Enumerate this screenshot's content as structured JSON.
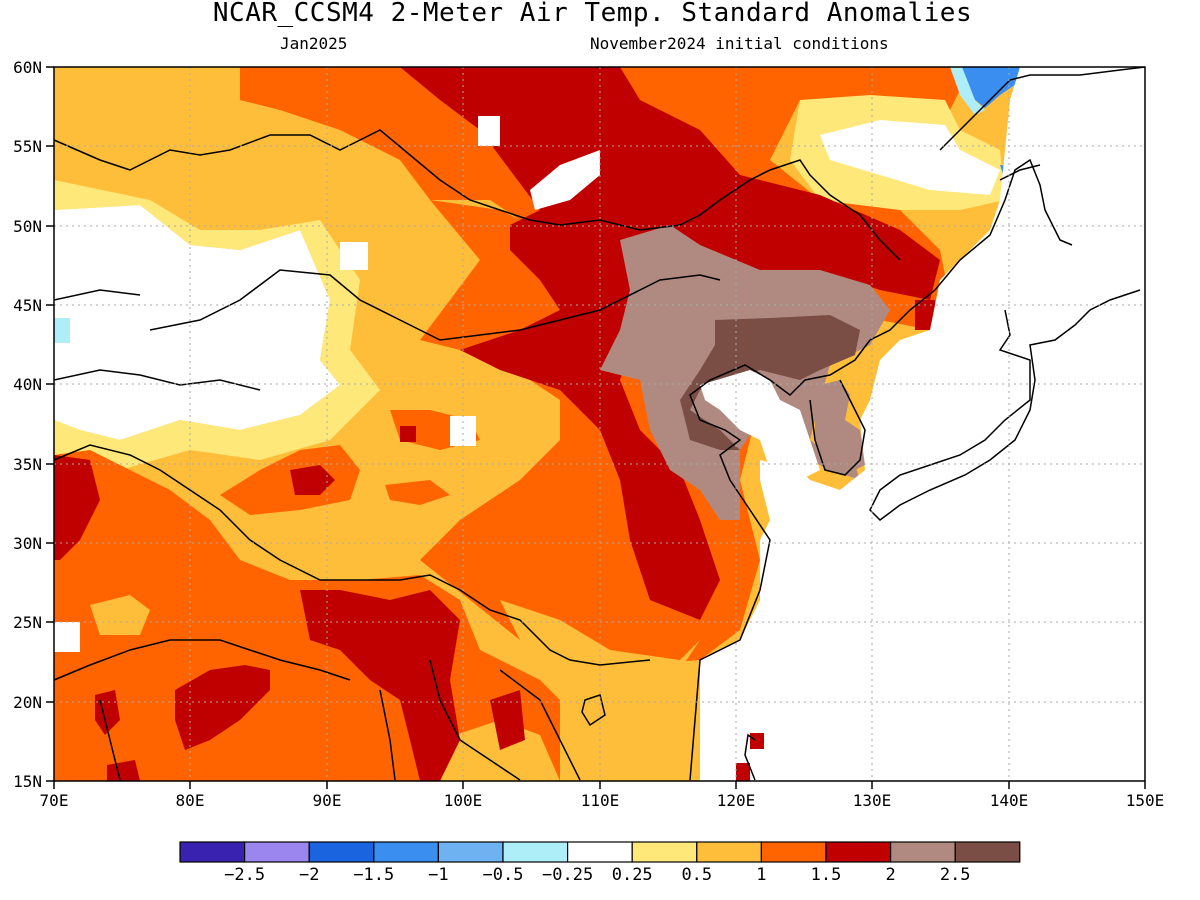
{
  "title": "NCAR_CCSM4 2-Meter Air Temp. Standard Anomalies",
  "subtitle_left": "Jan2025",
  "subtitle_right": "November2024 initial conditions",
  "map": {
    "lon_ticks": [
      "70E",
      "80E",
      "90E",
      "100E",
      "110E",
      "120E",
      "130E",
      "140E",
      "150E"
    ],
    "lat_ticks": [
      "60N",
      "55N",
      "50N",
      "45N",
      "40N",
      "35N",
      "30N",
      "25N",
      "20N",
      "15N"
    ],
    "lon_range": [
      70,
      150
    ],
    "lat_range": [
      15,
      60
    ],
    "grid": "dotted"
  },
  "colorbar": {
    "colors": [
      "#3a22b0",
      "#9b86f0",
      "#1a64e0",
      "#3a8ef0",
      "#6eb2f2",
      "#aeeef8",
      "#ffffff",
      "#ffe87a",
      "#ffbe3a",
      "#ff6400",
      "#c00000",
      "#b08a80",
      "#7a4e44"
    ],
    "labels": [
      "-2.5",
      "-2",
      "-1.5",
      "-1",
      "-0.5",
      "-0.25",
      "0.25",
      "0.5",
      "1",
      "1.5",
      "2",
      "2.5"
    ]
  },
  "anomaly_colors": {
    "white": "#ffffff",
    "light_yellow": "#ffe87a",
    "yellow_orange": "#ffbe3a",
    "orange": "#ff6400",
    "red": "#c00000",
    "light_brown": "#b08a80",
    "dark_brown": "#7a4e44",
    "light_blue": "#aeeef8",
    "blue": "#3a8ef0"
  }
}
